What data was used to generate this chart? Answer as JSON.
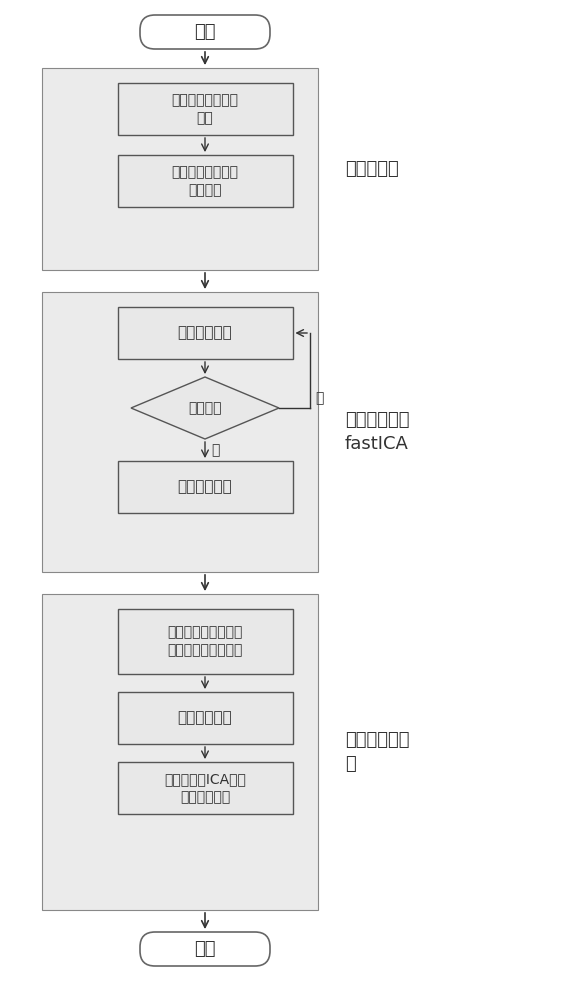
{
  "bg_color": "#ffffff",
  "box_bg": "#e8e8e8",
  "box_edge": "#555555",
  "group_bg": "#ebebeb",
  "group_edge": "#666666",
  "arrow_color": "#333333",
  "text_color": "#333333",
  "label_color": "#333333",
  "start_end_label": [
    "开始",
    "结束"
  ],
  "group1_label": "数据预处理",
  "group2_label": "独立成分分析\nfastICA",
  "group3_label": "去噪和数据恢\n复",
  "box1_label": "原始脑电波数据中\n心化",
  "box2_label": "中心化之后的数据\n进行白化",
  "box3_label": "优化分离矩阵",
  "box4_label": "是否收敛",
  "box5_label": "求得独立成分",
  "box6_label": "确定独立成分中包含\n下颌噪声的独立成分",
  "box7_label": "去除下颌噪声",
  "box8_label": "将去噪后的ICA数据\n恢复成多信道",
  "diamond_no_label": "否",
  "diamond_yes_label": "是",
  "figsize": [
    5.68,
    10.0
  ],
  "dpi": 100
}
